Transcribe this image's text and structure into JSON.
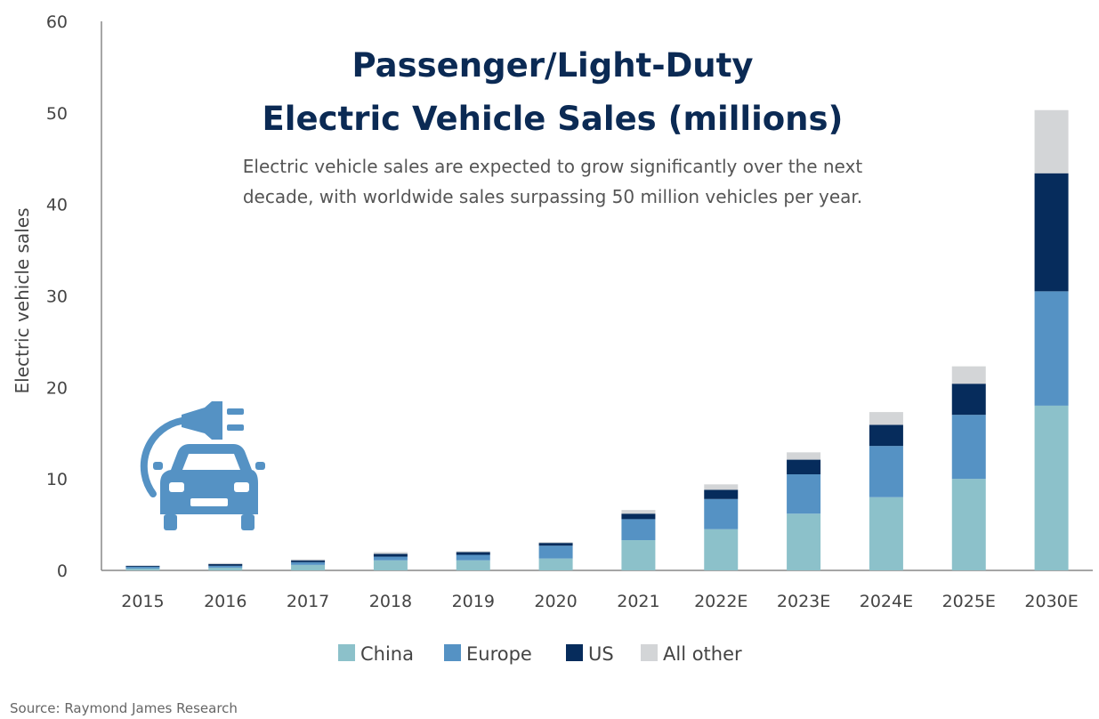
{
  "chart_data": {
    "type": "bar",
    "stacked": true,
    "title_lines": [
      "Passenger/Light-Duty",
      "Electric Vehicle Sales (millions)"
    ],
    "subtitle_lines": [
      "Electric vehicle sales are expected to grow significantly over the next",
      "decade, with worldwide sales surpassing 50 million vehicles per year."
    ],
    "ylabel": "Electric vehicle sales",
    "xlabel": "",
    "ylim": [
      0,
      60
    ],
    "yticks": [
      0,
      10,
      20,
      30,
      40,
      50,
      60
    ],
    "categories": [
      "2015",
      "2016",
      "2017",
      "2018",
      "2019",
      "2020",
      "2021",
      "2022E",
      "2023E",
      "2024E",
      "2025E",
      "2030E"
    ],
    "series": [
      {
        "name": "China",
        "color": "#8cc1ca",
        "values": [
          0.2,
          0.3,
          0.6,
          1.1,
          1.1,
          1.3,
          3.3,
          4.5,
          6.2,
          8.0,
          10.0,
          18.0
        ]
      },
      {
        "name": "Europe",
        "color": "#5592c4",
        "values": [
          0.2,
          0.2,
          0.3,
          0.4,
          0.6,
          1.4,
          2.3,
          3.3,
          4.3,
          5.6,
          7.0,
          12.5
        ]
      },
      {
        "name": "US",
        "color": "#062c5c",
        "values": [
          0.1,
          0.2,
          0.2,
          0.3,
          0.3,
          0.3,
          0.6,
          1.0,
          1.6,
          2.3,
          3.4,
          12.9
        ]
      },
      {
        "name": "All other",
        "color": "#d3d5d7",
        "values": [
          0.0,
          0.1,
          0.1,
          0.2,
          0.1,
          0.1,
          0.4,
          0.6,
          0.8,
          1.4,
          1.9,
          6.9
        ]
      }
    ],
    "legend_position": "bottom",
    "grid": false,
    "icon": "electric-car-plug-icon",
    "source": "Source: Raymond James Research"
  }
}
